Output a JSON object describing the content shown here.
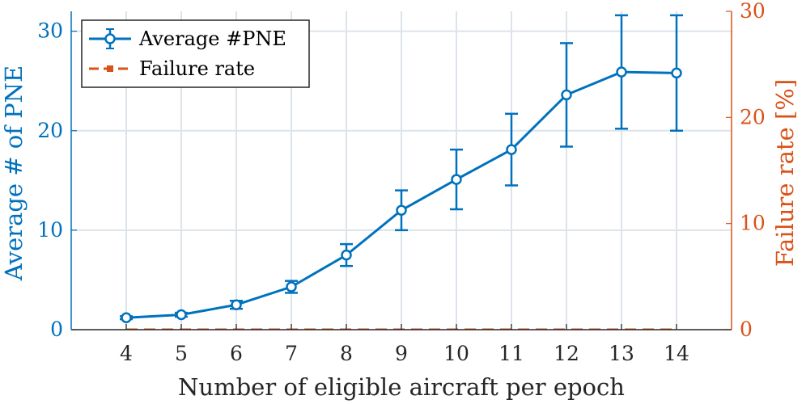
{
  "chart_data": {
    "type": "line",
    "xlabel": "Number of eligible aircraft per epoch",
    "x": [
      4,
      5,
      6,
      7,
      8,
      9,
      10,
      11,
      12,
      13,
      14
    ],
    "xlim": [
      3,
      15
    ],
    "grid": true,
    "legend_position": "top-left",
    "left_axis": {
      "label": "Average # of PNE",
      "ylim": [
        0,
        32
      ],
      "ticks": [
        0,
        10,
        20,
        30
      ],
      "tick_labels": [
        "0",
        "10",
        "20",
        "30"
      ],
      "color": "#0072BD"
    },
    "right_axis": {
      "label": "Failure rate [%]",
      "ylim": [
        0,
        30
      ],
      "ticks": [
        0,
        10,
        20,
        30
      ],
      "tick_labels": [
        "0",
        "10",
        "20",
        "30"
      ],
      "color": "#D95319"
    },
    "series": [
      {
        "name": "Average #PNE",
        "axis": "left",
        "style": "solid-line-circle-markers-errorbars",
        "color": "#0072BD",
        "values": [
          1.2,
          1.5,
          2.5,
          4.3,
          7.5,
          12.0,
          15.1,
          18.1,
          23.6,
          25.9,
          25.8
        ],
        "error": [
          0.15,
          0.2,
          0.4,
          0.6,
          1.1,
          2.0,
          3.0,
          3.6,
          5.2,
          5.7,
          5.8
        ]
      },
      {
        "name": "Failure rate",
        "axis": "right",
        "style": "dashed-line-square-markers",
        "color": "#D95319",
        "values": [
          0,
          0,
          0,
          0,
          0,
          0,
          0,
          0,
          0,
          0,
          0
        ]
      }
    ],
    "xtick_labels": [
      "4",
      "5",
      "6",
      "7",
      "8",
      "9",
      "10",
      "11",
      "12",
      "13",
      "14"
    ]
  }
}
